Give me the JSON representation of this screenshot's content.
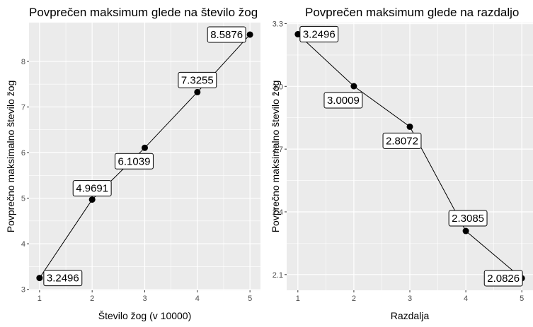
{
  "chart_data": [
    {
      "type": "line",
      "title": "Povprečen maksimum glede na število žog",
      "xlabel": "Število žog (v 10000)",
      "ylabel": "Povprečno maksimalno število žog",
      "x": [
        1,
        2,
        3,
        4,
        5
      ],
      "y": [
        3.2496,
        4.9691,
        6.1039,
        7.3255,
        8.5876
      ],
      "labels": [
        "3.2496",
        "4.9691",
        "6.1039",
        "7.3255",
        "8.5876"
      ],
      "xticks": [
        "1",
        "2",
        "3",
        "4",
        "5"
      ],
      "yticks": [
        "3",
        "4",
        "5",
        "6",
        "7",
        "8"
      ],
      "xlim": [
        0.8,
        5.2
      ],
      "ylim": [
        2.98,
        8.85
      ],
      "grid": true
    },
    {
      "type": "line",
      "title": "Povprečen maksimum glede na razdaljo",
      "xlabel": "Razdalja",
      "ylabel": "Povprečno maksimalno število žog",
      "x": [
        1,
        2,
        3,
        4,
        5
      ],
      "y": [
        3.2496,
        3.0009,
        2.8072,
        2.3085,
        2.0826
      ],
      "labels": [
        "3.2496",
        "3.0009",
        "2.8072",
        "2.3085",
        "2.0826"
      ],
      "xticks": [
        "1",
        "2",
        "3",
        "4",
        "5"
      ],
      "yticks": [
        "2.1",
        "2.4",
        "2.7",
        "3.0",
        "3.3"
      ],
      "xlim": [
        0.8,
        5.2
      ],
      "ylim": [
        2.025,
        3.305
      ],
      "grid": true
    }
  ]
}
